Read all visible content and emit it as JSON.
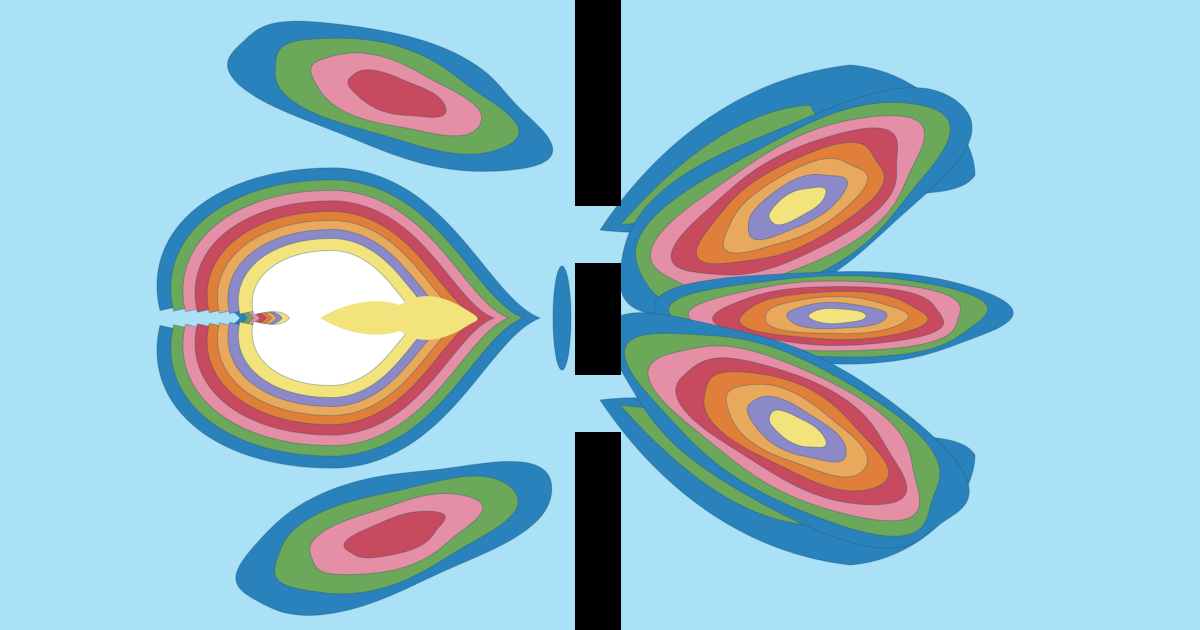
{
  "colors": {
    "background": "#abe1f6",
    "barrier": "#000000",
    "contour_outline": "#1f4f6e",
    "levels": [
      "#2a82bc",
      "#6ba85a",
      "#e48fa6",
      "#c84a5e",
      "#e07f3a",
      "#e9a95c",
      "#8c89c8",
      "#f3e37c",
      "#ffffff"
    ]
  },
  "contour_levels": 9,
  "barrier": {
    "orientation": "vertical",
    "slit_count": 2
  }
}
